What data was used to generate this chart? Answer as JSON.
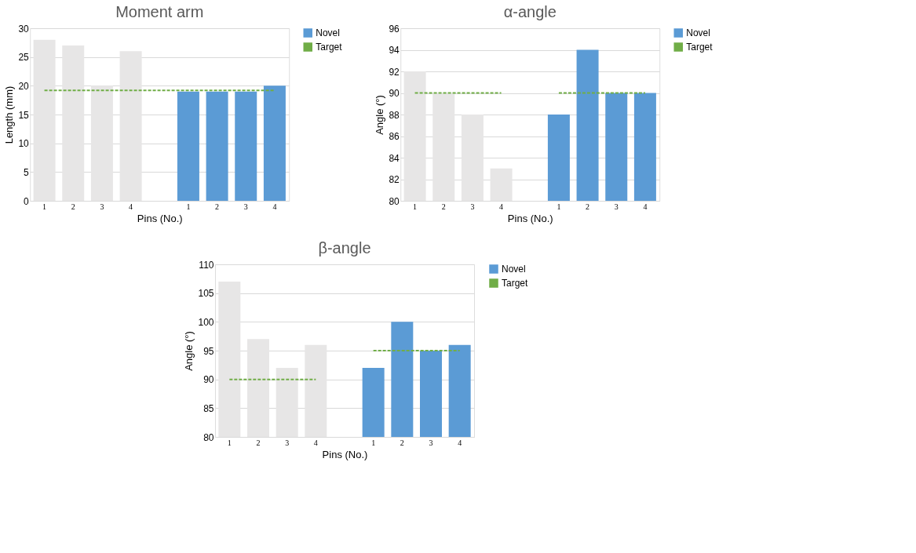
{
  "chart_data": [
    {
      "type": "bar",
      "title": "Moment arm",
      "xlabel": "Pins (No.)",
      "ylabel": "Length (mm)",
      "categories": [
        "1",
        "2",
        "3",
        "4",
        null,
        "1",
        "2",
        "3",
        "4"
      ],
      "series": [
        {
          "color": "#e7e6e6",
          "values": [
            28,
            27,
            20,
            26,
            null,
            null,
            null,
            null,
            null
          ]
        },
        {
          "name": "Novel",
          "color": "#5b9bd5",
          "values": [
            null,
            null,
            null,
            null,
            null,
            19,
            19,
            19,
            20
          ]
        },
        {
          "name": "Target",
          "type": "line",
          "line_style": "dashed",
          "color": "#70ad47",
          "values": [
            19.2,
            19.2,
            19.2,
            19.2,
            19.2,
            19.2,
            19.2,
            19.2,
            19.2
          ]
        }
      ],
      "ylim": [
        0,
        30
      ],
      "yticks": [
        0,
        5,
        10,
        15,
        20,
        25,
        30
      ],
      "grid": "y",
      "legend": "right"
    },
    {
      "type": "bar",
      "title": "α-angle",
      "xlabel": "Pins (No.)",
      "ylabel": "Angle (°)",
      "categories": [
        "1",
        "2",
        "3",
        "4",
        null,
        "1",
        "2",
        "3",
        "4"
      ],
      "series": [
        {
          "color": "#e7e6e6",
          "values": [
            92,
            90,
            88,
            83,
            null,
            null,
            null,
            null,
            null
          ]
        },
        {
          "name": "Novel",
          "color": "#5b9bd5",
          "values": [
            null,
            null,
            null,
            null,
            null,
            88,
            94,
            90,
            90
          ]
        },
        {
          "name": "Target",
          "type": "line",
          "line_style": "dashed",
          "color": "#70ad47",
          "values": [
            90,
            90,
            90,
            90,
            null,
            90,
            90,
            90,
            90
          ]
        }
      ],
      "ylim": [
        80,
        96
      ],
      "yticks": [
        80,
        82,
        84,
        86,
        88,
        90,
        92,
        94,
        96
      ],
      "grid": "y",
      "legend": "right"
    },
    {
      "type": "bar",
      "title": "β-angle",
      "xlabel": "Pins (No.)",
      "ylabel": "Angle (°)",
      "categories": [
        "1",
        "2",
        "3",
        "4",
        null,
        "1",
        "2",
        "3",
        "4"
      ],
      "series": [
        {
          "color": "#e7e6e6",
          "values": [
            107,
            97,
            92,
            96,
            null,
            null,
            null,
            null,
            null
          ]
        },
        {
          "name": "Novel",
          "color": "#5b9bd5",
          "values": [
            null,
            null,
            null,
            null,
            null,
            92,
            100,
            95,
            96
          ]
        },
        {
          "name": "Target",
          "type": "line",
          "line_style": "dashed",
          "color": "#70ad47",
          "values": [
            90,
            90,
            90,
            90,
            null,
            95,
            95,
            95,
            95
          ]
        }
      ],
      "ylim": [
        80,
        110
      ],
      "yticks": [
        80,
        85,
        90,
        95,
        100,
        105,
        110
      ],
      "grid": "y",
      "legend": "right"
    }
  ]
}
